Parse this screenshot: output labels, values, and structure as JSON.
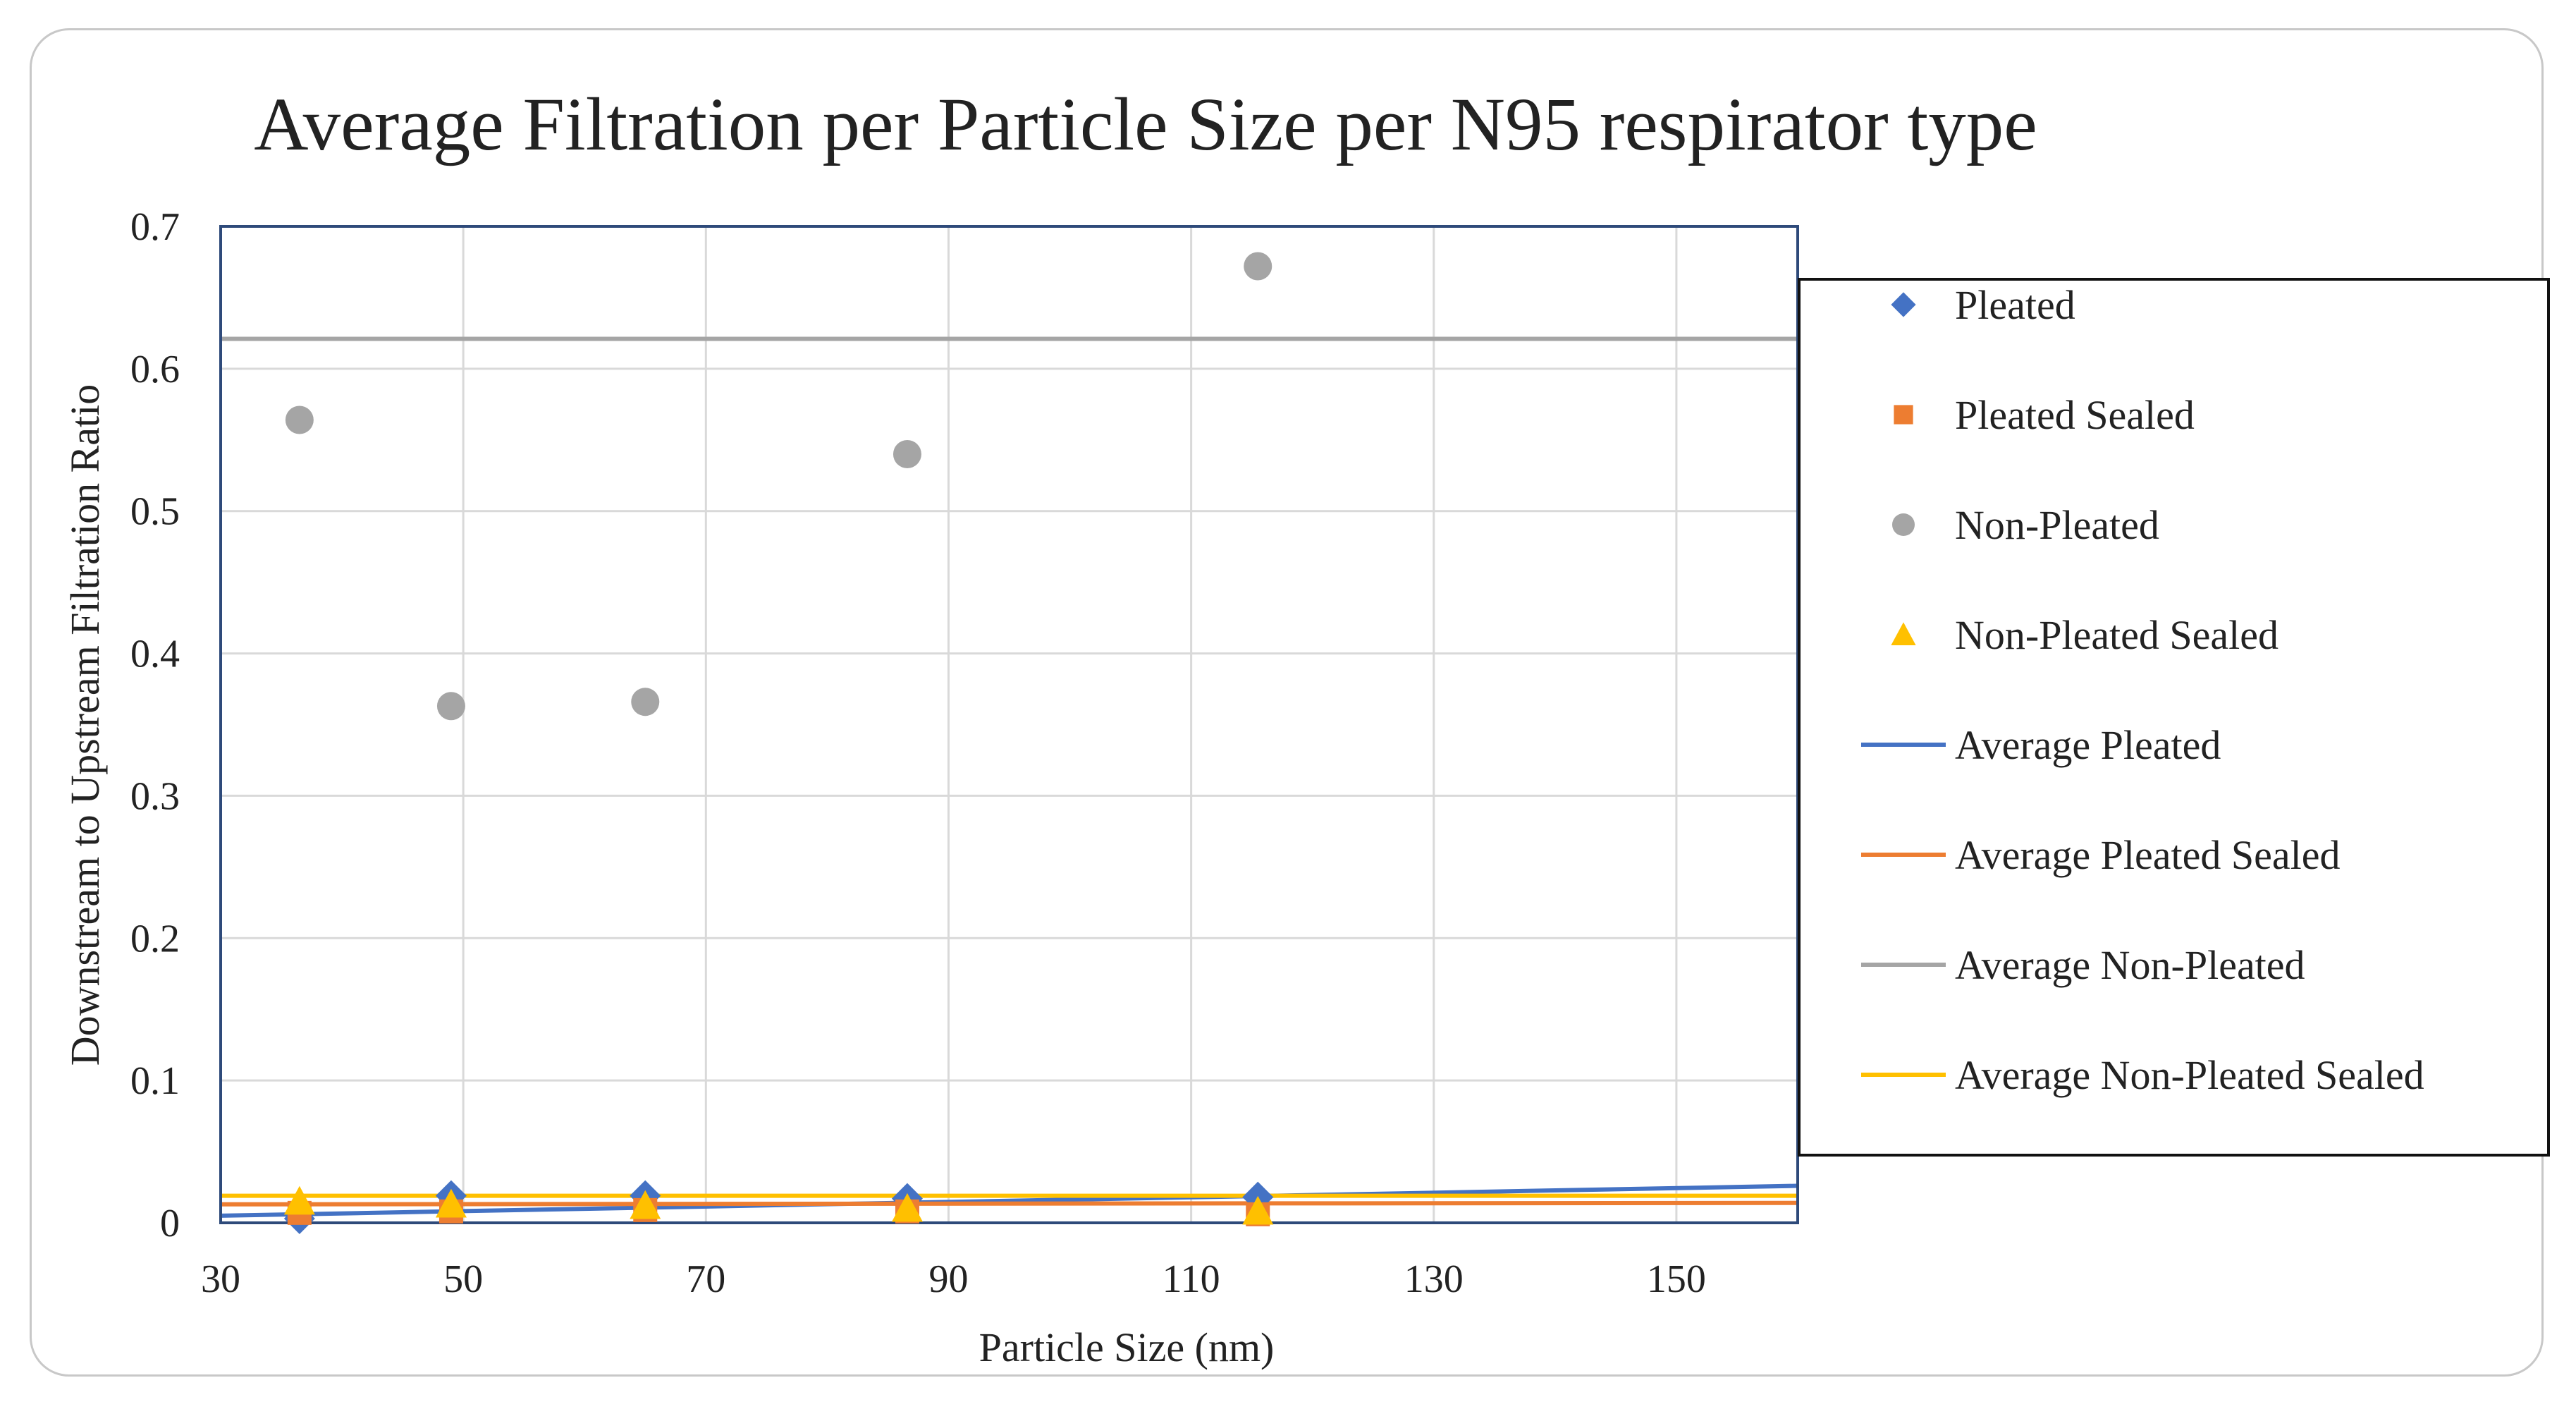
{
  "chart_data": {
    "type": "scatter",
    "title": "Average Filtration per Particle Size per N95 respirator type",
    "xlabel": "Particle Size (nm)",
    "ylabel": "Downstream to Upstream Filtration Ratio",
    "xlim": [
      30,
      160
    ],
    "ylim": [
      0,
      0.7
    ],
    "xticks": [
      30,
      50,
      70,
      90,
      110,
      130,
      150
    ],
    "yticks": [
      0,
      0.1,
      0.2,
      0.3,
      0.4,
      0.5,
      0.6,
      0.7
    ],
    "grid": true,
    "legend_position": "right",
    "series": [
      {
        "name": "Pleated",
        "kind": "scatter",
        "marker": "diamond",
        "color": "#4472C4",
        "points": [
          [
            36.5,
            0.003
          ],
          [
            49,
            0.019
          ],
          [
            65,
            0.019
          ],
          [
            86.6,
            0.017
          ],
          [
            115.5,
            0.018
          ]
        ]
      },
      {
        "name": "Pleated Sealed",
        "kind": "scatter",
        "marker": "square",
        "color": "#ED7D31",
        "points": [
          [
            36.5,
            0.007
          ],
          [
            49,
            0.008
          ],
          [
            65,
            0.009
          ],
          [
            86.6,
            0.008
          ],
          [
            115.5,
            0.006
          ]
        ]
      },
      {
        "name": "Non-Pleated",
        "kind": "scatter",
        "marker": "circle",
        "color": "#A5A5A5",
        "points": [
          [
            36.5,
            0.564
          ],
          [
            49,
            0.363
          ],
          [
            65,
            0.366
          ],
          [
            86.6,
            0.54
          ],
          [
            115.5,
            0.672
          ]
        ]
      },
      {
        "name": "Non-Pleated Sealed",
        "kind": "scatter",
        "marker": "triangle",
        "color": "#FFC000",
        "points": [
          [
            36.5,
            0.015
          ],
          [
            49,
            0.013
          ],
          [
            65,
            0.012
          ],
          [
            86.6,
            0.01
          ],
          [
            115.5,
            0.008
          ]
        ]
      },
      {
        "name": "Average Pleated",
        "kind": "line",
        "color": "#4472C4",
        "points": [
          [
            30,
            0.005
          ],
          [
            160,
            0.026
          ]
        ]
      },
      {
        "name": "Average Pleated Sealed",
        "kind": "line",
        "color": "#ED7D31",
        "points": [
          [
            30,
            0.013
          ],
          [
            160,
            0.014
          ]
        ]
      },
      {
        "name": "Average Non-Pleated",
        "kind": "line",
        "color": "#A5A5A5",
        "points": [
          [
            30,
            0.621
          ],
          [
            160,
            0.621
          ]
        ]
      },
      {
        "name": "Average Non-Pleated Sealed",
        "kind": "line",
        "color": "#FFC000",
        "points": [
          [
            30,
            0.019
          ],
          [
            160,
            0.019
          ]
        ]
      }
    ],
    "legend": [
      {
        "label": "Pleated",
        "marker": "diamond",
        "color": "#4472C4"
      },
      {
        "label": "Pleated Sealed",
        "marker": "square",
        "color": "#ED7D31"
      },
      {
        "label": "Non-Pleated",
        "marker": "circle",
        "color": "#A5A5A5"
      },
      {
        "label": "Non-Pleated Sealed",
        "marker": "triangle",
        "color": "#FFC000"
      },
      {
        "label": "Average Pleated",
        "marker": "line",
        "color": "#4472C4"
      },
      {
        "label": "Average Pleated Sealed",
        "marker": "line",
        "color": "#ED7D31"
      },
      {
        "label": "Average Non-Pleated",
        "marker": "line",
        "color": "#A5A5A5"
      },
      {
        "label": "Average Non-Pleated Sealed",
        "marker": "line",
        "color": "#FFC000"
      }
    ]
  }
}
